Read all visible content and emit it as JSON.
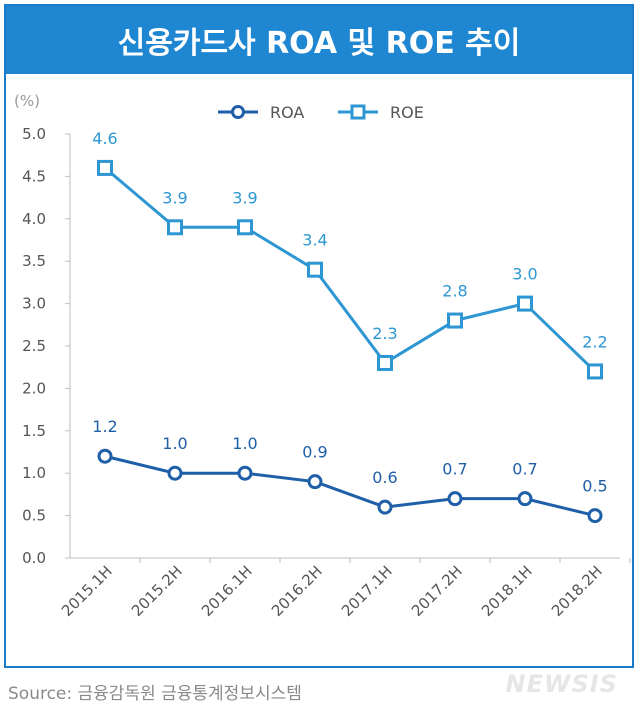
{
  "title": "신용카드사 ROA 및 ROE 추이",
  "source": "Source:  금융감독원  금융통계정보시스템",
  "watermark": "NEWSIS",
  "colors": {
    "ROA": "#1e5fa8",
    "ROE": "#2d96d3",
    "title_bg": "#1f86d2",
    "label_roa": "#1e5fa8",
    "label_roe": "#2d96d3"
  },
  "chart_data": {
    "type": "line",
    "title": "신용카드사 ROA 및 ROE 추이",
    "ylabel": "(%)",
    "xlabel": "",
    "categories": [
      "2015.1H",
      "2015.2H",
      "2016.1H",
      "2016.2H",
      "2017.1H",
      "2017.2H",
      "2018.1H",
      "2018.2H"
    ],
    "ylim": [
      0,
      5
    ],
    "yticks": [
      "0.0",
      "0.5",
      "1.0",
      "1.5",
      "2.0",
      "2.5",
      "3.0",
      "3.5",
      "4.0",
      "4.5",
      "5.0"
    ],
    "grid": false,
    "legend": "top-center",
    "series": [
      {
        "name": "ROA",
        "marker": "circle",
        "values": [
          1.2,
          1.0,
          1.0,
          0.9,
          0.6,
          0.7,
          0.7,
          0.5
        ],
        "labels": [
          "1.2",
          "1.0",
          "1.0",
          "0.9",
          "0.6",
          "0.7",
          "0.7",
          "0.5"
        ]
      },
      {
        "name": "ROE",
        "marker": "square",
        "values": [
          4.6,
          3.9,
          3.9,
          3.4,
          2.3,
          2.8,
          3.0,
          2.2
        ],
        "labels": [
          "4.6",
          "3.9",
          "3.9",
          "3.4",
          "2.3",
          "2.8",
          "3.0",
          "2.2"
        ]
      }
    ]
  }
}
